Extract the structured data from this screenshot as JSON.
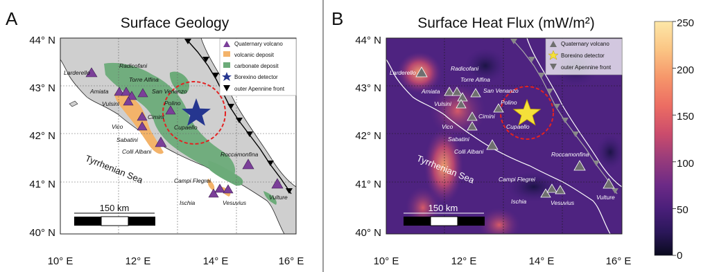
{
  "panel_a": {
    "letter": "A",
    "title": "Surface Geology",
    "lat_ticks": [
      "44° N",
      "43° N",
      "42° N",
      "41° N",
      "40° N"
    ],
    "lon_ticks": [
      "10° E",
      "12° E",
      "14° E",
      "16° E"
    ],
    "sea_label": "Tyrrhenian Sea",
    "scale_label": "150 km",
    "legend": [
      {
        "label": "Quaternary volcano",
        "symbol": "purple-triangle"
      },
      {
        "label": "volcanic deposit",
        "symbol": "orange-square"
      },
      {
        "label": "carbonate deposit",
        "symbol": "green-square"
      },
      {
        "label": "Borexino detector",
        "symbol": "blue-star"
      },
      {
        "label": "outer Apennine front",
        "symbol": "black-triangle"
      }
    ],
    "places": [
      "Larderello",
      "Radicofani",
      "Torre Alfina",
      "Amiata",
      "San Venanzo",
      "Vulsini",
      "Polino",
      "Cimini",
      "Cupaello",
      "Vico",
      "Sabatini",
      "Colli Albani",
      "Roccamonfina",
      "Campi Flegrei",
      "Ischia",
      "Vesuvius",
      "Vulture"
    ],
    "colors": {
      "land": "#cfcfcf",
      "volcanic": "#f3b36a",
      "carbonate": "#6cab79",
      "volcano": "#7b3f99",
      "detector": "#25368f",
      "circle": "#e32222"
    }
  },
  "panel_b": {
    "letter": "B",
    "title": "Surface Heat Flux (mW/m²)",
    "lat_ticks": [
      "44° N",
      "43° N",
      "42° N",
      "41° N",
      "40° N"
    ],
    "lon_ticks": [
      "10° E",
      "12° E",
      "14° E",
      "16° E"
    ],
    "sea_label": "Tyrrhenian Sea",
    "scale_label": "150 km",
    "legend": [
      {
        "label": "Quaternary volcano",
        "symbol": "grey-triangle"
      },
      {
        "label": "Borexino detector",
        "symbol": "yellow-star"
      },
      {
        "label": "outer Apennine front",
        "symbol": "grey-triangle-down"
      }
    ],
    "places": [
      "Larderello",
      "Radicofani",
      "Torre Alfina",
      "Amiata",
      "San Venanzo",
      "Vulsini",
      "Polino",
      "Cimini",
      "Cupaello",
      "Vico",
      "Sabatini",
      "Colli Albani",
      "Roccamonfina",
      "Campi Flegrei",
      "Ischia",
      "Vesuvius",
      "Vulture"
    ],
    "colorbar": {
      "ticks": [
        "250",
        "200",
        "150",
        "100",
        "50",
        "0"
      ],
      "min": 0,
      "max": 250
    },
    "colors": {
      "detector": "#f4e03a",
      "volcano": "#6f6f6f"
    }
  }
}
